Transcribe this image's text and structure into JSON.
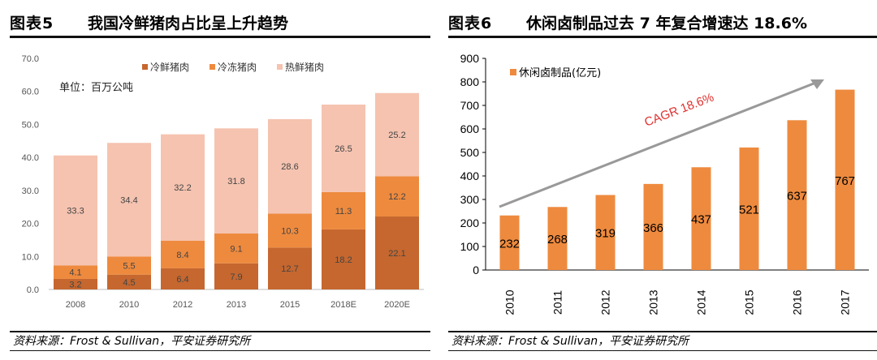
{
  "left_panel": {
    "figure_label": "图表5",
    "title": "我国冷鲜猪肉占比呈上升趋势",
    "unit_label": "单位：百万公吨",
    "source": "资料来源：Frost & Sullivan，平安证券研究所"
  },
  "right_panel": {
    "figure_label": "图表6",
    "title": "休闲卤制品过去 7 年复合增速达 18.6%",
    "source": "资料来源：Frost & Sullivan，平安证券研究所",
    "cagr_label": "CAGR 18.6%"
  },
  "chart_data": [
    {
      "type": "bar",
      "stacked": true,
      "categories": [
        "2008",
        "2010",
        "2012",
        "2013",
        "2015",
        "2018E",
        "2020E"
      ],
      "series": [
        {
          "name": "冷鲜猪肉",
          "values": [
            3.2,
            4.5,
            6.4,
            7.9,
            12.7,
            18.2,
            22.1
          ],
          "color": "#c5672f",
          "labels": [
            "3.2",
            "4.5",
            "6.4",
            "7.9",
            "12.7",
            "18.2",
            "22.1"
          ]
        },
        {
          "name": "冷冻猪肉",
          "values": [
            4.1,
            5.5,
            8.4,
            9.1,
            10.3,
            11.3,
            12.2
          ],
          "color": "#ee8a3e",
          "labels": [
            "4.1",
            "5.5",
            "8.4",
            "9.1",
            "10.3",
            "11.3",
            "12.2"
          ]
        },
        {
          "name": "热鲜猪肉",
          "values": [
            33.3,
            34.4,
            32.2,
            31.8,
            28.6,
            26.5,
            25.2
          ],
          "color": "#f5c3b0",
          "labels": [
            "33.3",
            "34.4",
            "32.2",
            "31.8",
            "28.6",
            "26.5",
            "25.2"
          ]
        }
      ],
      "ylim": [
        0,
        70
      ],
      "yticks": [
        "0.0",
        "10.0",
        "20.0",
        "30.0",
        "40.0",
        "50.0",
        "60.0",
        "70.0"
      ],
      "legend": "top"
    },
    {
      "type": "bar",
      "categories": [
        "2010",
        "2011",
        "2012",
        "2013",
        "2014",
        "2015",
        "2016",
        "2017"
      ],
      "series": [
        {
          "name": "休闲卤制品(亿元)",
          "values": [
            232,
            268,
            319,
            366,
            437,
            521,
            637,
            767
          ],
          "color": "#ee8a3e",
          "labels": [
            "232",
            "268",
            "319",
            "366",
            "437",
            "521",
            "637",
            "767"
          ]
        }
      ],
      "ylim": [
        0,
        900
      ],
      "yticks": [
        "0",
        "100",
        "200",
        "300",
        "400",
        "500",
        "600",
        "700",
        "800",
        "900"
      ],
      "legend": "top-left"
    }
  ]
}
